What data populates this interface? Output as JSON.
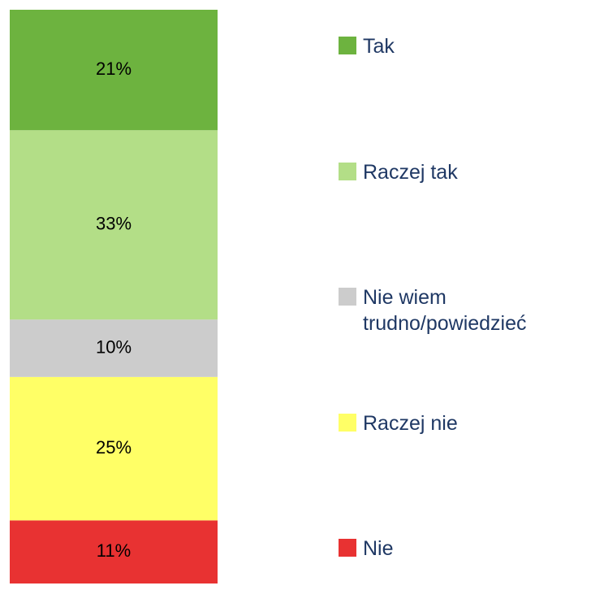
{
  "chart_data": {
    "type": "stacked_bar",
    "series": [
      {
        "name": "Tak",
        "color": "#6db33f",
        "values": [
          21
        ],
        "value_labels": [
          "21%"
        ]
      },
      {
        "name": "Raczej tak",
        "color": "#b3de87",
        "values": [
          33
        ],
        "value_labels": [
          "33%"
        ]
      },
      {
        "name": "Nie wiem trudno/powiedzieć",
        "color": "#cccccc",
        "values": [
          10
        ],
        "value_labels": [
          "10%"
        ]
      },
      {
        "name": "Raczej nie",
        "color": "#ffff66",
        "values": [
          25
        ],
        "value_labels": [
          "25%"
        ]
      },
      {
        "name": "Nie",
        "color": "#e83232",
        "values": [
          11
        ],
        "value_labels": [
          "11%"
        ]
      }
    ],
    "ylim": [
      0,
      100
    ]
  }
}
